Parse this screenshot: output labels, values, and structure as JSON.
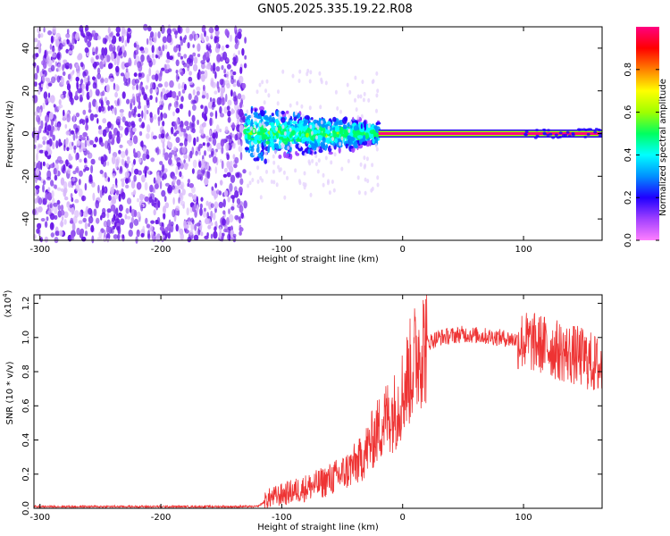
{
  "title": "GN05.2025.335.19.22.R08",
  "chart_data": [
    {
      "type": "heatmap",
      "xlabel": "Height of straight line (km)",
      "ylabel": "Frequency (Hz)",
      "xlim": [
        -305,
        165
      ],
      "ylim": [
        -50,
        50
      ],
      "xticks": [
        -300,
        -200,
        -100,
        0,
        100
      ],
      "xtick_labels": [
        "-300",
        "-200",
        "-100",
        "0",
        "100"
      ],
      "yticks": [
        -40,
        -20,
        0,
        20,
        40
      ],
      "ytick_labels": [
        "-40",
        "-20",
        "0",
        "20",
        "40"
      ],
      "colorbar": {
        "label": "Normalized spectral amplitude",
        "range": [
          0,
          1
        ],
        "ticks": [
          0.0,
          0.2,
          0.4,
          0.6,
          0.8
        ],
        "tick_labels": [
          "0.0",
          "0.2",
          "0.4",
          "0.6",
          "0.8"
        ],
        "colors": [
          "#ff80ff",
          "#a040ff",
          "#2000ff",
          "#0090ff",
          "#00ffff",
          "#00ff60",
          "#a0ff00",
          "#ffff00",
          "#ff8000",
          "#ff0000",
          "#ff0080"
        ]
      },
      "regions": [
        {
          "x_range": [
            -305,
            -130
          ],
          "freq_range": [
            -50,
            50
          ],
          "amplitude": 0.1,
          "pattern": "speckled noise"
        },
        {
          "x_range": [
            -130,
            -20
          ],
          "freq_range": [
            -15,
            15
          ],
          "amplitude": 0.4,
          "pattern": "spread signal"
        },
        {
          "x_range": [
            -20,
            165
          ],
          "freq_range": [
            -1.5,
            1.5
          ],
          "amplitude": 0.95,
          "pattern": "narrow carrier line"
        }
      ]
    },
    {
      "type": "line",
      "xlabel": "Height of straight line (km)",
      "ylabel": "SNR (10 * v/v)",
      "scale_label": "(x10",
      "scale_exp": "4",
      "xlim": [
        -305,
        165
      ],
      "ylim": [
        0,
        1.25
      ],
      "xticks": [
        -300,
        -200,
        -100,
        0,
        100
      ],
      "xtick_labels": [
        "-300",
        "-200",
        "-100",
        "0",
        "100"
      ],
      "yticks": [
        0.0,
        0.2,
        0.4,
        0.6,
        0.8,
        1.0,
        1.2
      ],
      "ytick_labels": [
        "0.0",
        "0.2",
        "0.4",
        "0.6",
        "0.8",
        "1.0",
        "1.2"
      ],
      "series": [
        {
          "name": "SNR",
          "color": "#ee3333",
          "x": [
            -305,
            -200,
            -120,
            -110,
            -90,
            -70,
            -50,
            -35,
            -25,
            -15,
            -5,
            5,
            15,
            30,
            50,
            80,
            100,
            115,
            130,
            150,
            165
          ],
          "y": [
            0.01,
            0.01,
            0.01,
            0.06,
            0.1,
            0.14,
            0.2,
            0.28,
            0.4,
            0.52,
            0.58,
            0.78,
            0.95,
            1.0,
            1.02,
            1.0,
            0.98,
            0.96,
            0.92,
            0.88,
            0.82
          ]
        }
      ]
    }
  ]
}
